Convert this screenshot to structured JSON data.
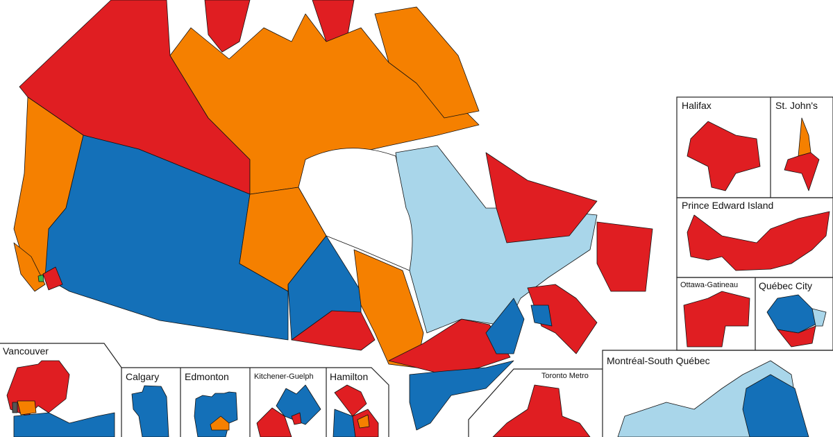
{
  "colors": {
    "liberal": "#E01E22",
    "ndp": "#F58000",
    "conservative": "#1470B8",
    "bloc": "#A9D6EA",
    "green": "#3CB94A",
    "independent": "#555555",
    "water": "#ffffff"
  },
  "insets": {
    "halifax": "Halifax",
    "st_johns": "St. John's",
    "pei": "Prince Edward Island",
    "ottawa": "Ottawa-Gatineau",
    "quebec_city": "Québec City",
    "montreal": "Montréal-South Québec",
    "toronto": "Toronto Metro",
    "vancouver": "Vancouver",
    "calgary": "Calgary",
    "edmonton": "Edmonton",
    "kitchener": "Kitchener-Guelph",
    "hamilton": "Hamilton"
  }
}
